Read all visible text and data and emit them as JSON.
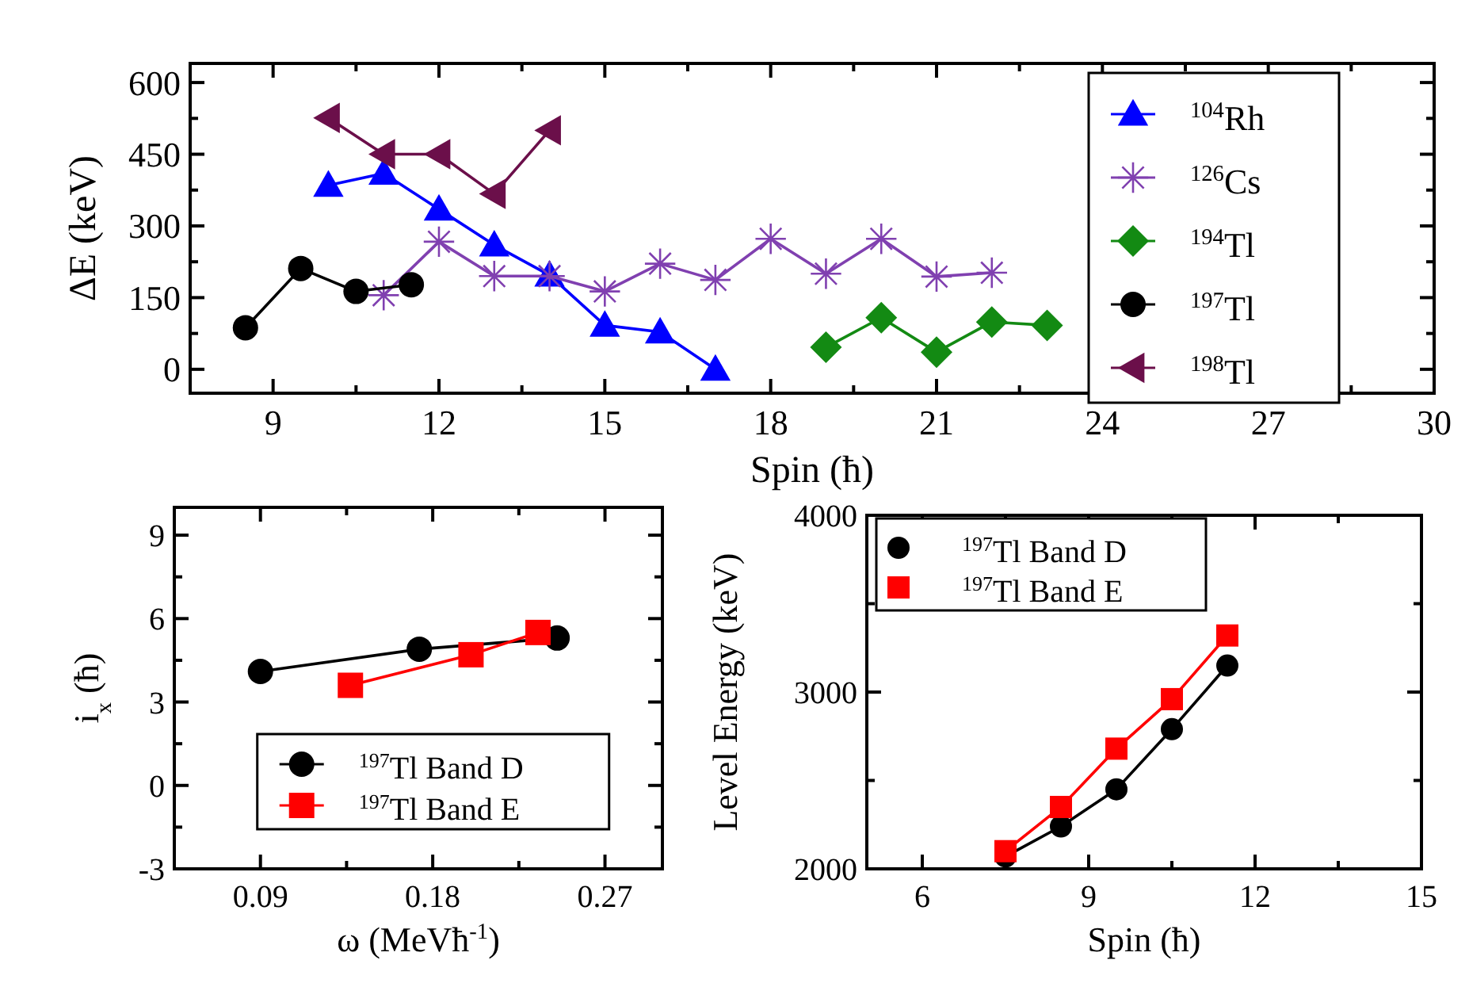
{
  "chart_data": [
    {
      "type": "line",
      "xlabel": "Spin (ħ)",
      "ylabel": "ΔE (keV)",
      "xlim": [
        7.5,
        30
      ],
      "ylim": [
        -50,
        640
      ],
      "xticks": [
        9,
        {
          "value": 10.5,
          "label": null
        },
        12,
        {
          "value": 13.5,
          "label": null
        },
        15,
        {
          "value": 16.5,
          "label": null
        },
        18,
        {
          "value": 19.5,
          "label": null
        },
        21,
        {
          "value": 22.5,
          "label": null
        },
        24,
        {
          "value": 25.5,
          "label": null
        },
        27,
        {
          "value": 28.5,
          "label": null
        },
        30
      ],
      "yticks": [
        0,
        {
          "value": 75,
          "label": null
        },
        150,
        {
          "value": 225,
          "label": null
        },
        300,
        {
          "value": 375,
          "label": null
        },
        450,
        {
          "value": 525,
          "label": null
        },
        600
      ],
      "legend": "right",
      "grid": false,
      "series": [
        {
          "name": "$^{104}$Rh",
          "color": "#0000ff",
          "marker": "triangle",
          "x": [
            10,
            11,
            12,
            13,
            14,
            15,
            16,
            17
          ],
          "values": [
            385,
            410,
            335,
            260,
            197,
            92,
            78,
            0
          ]
        },
        {
          "name": "$^{126}$Cs",
          "color": "#8040b0",
          "marker": "cross",
          "x": [
            11,
            12,
            13,
            14,
            15,
            16,
            17,
            18,
            19,
            20,
            21,
            22
          ],
          "values": [
            155,
            267,
            195,
            195,
            163,
            221,
            187,
            273,
            200,
            273,
            194,
            202
          ]
        },
        {
          "name": "$^{194}$Tl",
          "color": "#138a13",
          "marker": "diamond",
          "x": [
            19,
            20,
            21,
            22,
            23
          ],
          "values": [
            46,
            108,
            36,
            99,
            92
          ]
        },
        {
          "name": "$^{197}$Tl",
          "color": "#000000",
          "marker": "circle",
          "x": [
            8.5,
            9.5,
            10.5,
            11.5
          ],
          "values": [
            87,
            211,
            163,
            177
          ]
        },
        {
          "name": "$^{198}$Tl",
          "color": "#6b0f4a",
          "marker": "triangle-left",
          "x": [
            10,
            11,
            12,
            13,
            14
          ],
          "values": [
            526,
            450,
            450,
            367,
            500
          ]
        }
      ]
    },
    {
      "type": "line",
      "xlabel": "ω (MeVħ$^{-1}$)",
      "ylabel": "i$_{x}$ (ħ)",
      "xlim": [
        0.045,
        0.3
      ],
      "ylim": [
        -3,
        10
      ],
      "xticks": [
        0.09,
        {
          "value": 0.135,
          "label": null
        },
        0.18,
        {
          "value": 0.225,
          "label": null
        },
        0.27
      ],
      "yticks": [
        -3,
        {
          "value": -1.5,
          "label": null
        },
        0,
        {
          "value": 1.5,
          "label": null
        },
        3,
        {
          "value": 4.5,
          "label": null
        },
        6,
        {
          "value": 7.5,
          "label": null
        },
        9
      ],
      "legend": "bottom",
      "grid": false,
      "series": [
        {
          "name": "$^{197}$Tl Band D",
          "color": "#000000",
          "marker": "circle",
          "x": [
            0.09,
            0.173,
            0.245
          ],
          "values": [
            4.1,
            4.9,
            5.3
          ]
        },
        {
          "name": "$^{197}$Tl Band E",
          "color": "#ff0000",
          "marker": "square",
          "x": [
            0.137,
            0.2,
            0.235
          ],
          "values": [
            3.6,
            4.7,
            5.5
          ]
        }
      ]
    },
    {
      "type": "line",
      "xlabel": "Spin (ħ)",
      "ylabel": "Level Energy (keV)",
      "xlim": [
        5,
        15
      ],
      "ylim": [
        2000,
        4000
      ],
      "xticks": [
        6,
        {
          "value": 7.5,
          "label": null
        },
        9,
        {
          "value": 10.5,
          "label": null
        },
        12,
        {
          "value": 13.5,
          "label": null
        },
        15
      ],
      "yticks": [
        2000,
        {
          "value": 2500,
          "label": null
        },
        3000,
        {
          "value": 3500,
          "label": null
        },
        4000
      ],
      "legend": "top left",
      "grid": false,
      "series": [
        {
          "name": "$^{197}$Tl Band D",
          "color": "#000000",
          "marker": "circle",
          "x": [
            7.5,
            8.5,
            9.5,
            10.5,
            11.5
          ],
          "values": [
            2070,
            2240,
            2450,
            2790,
            3150
          ]
        },
        {
          "name": "$^{197}$Tl Band E",
          "color": "#ff0000",
          "marker": "square",
          "x": [
            7.5,
            8.5,
            9.5,
            10.5,
            11.5
          ],
          "values": [
            2100,
            2350,
            2680,
            2960,
            3320
          ]
        }
      ]
    }
  ]
}
